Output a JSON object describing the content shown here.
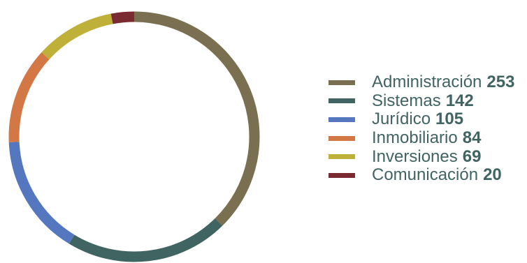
{
  "chart_data": {
    "type": "pie",
    "variant": "donut",
    "title": "",
    "legend_position": "right",
    "categories": [
      "Administración",
      "Sistemas",
      "Jurídico",
      "Inmobiliario",
      "Inversiones",
      "Comunicación"
    ],
    "values": [
      253,
      142,
      105,
      84,
      69,
      20
    ],
    "colors": [
      "#7a6f50",
      "#3f6462",
      "#5477c0",
      "#d37745",
      "#bfb03a",
      "#7b2a31"
    ],
    "legend": [
      {
        "label": "Administración",
        "value": "253",
        "color": "#7a6f50"
      },
      {
        "label": "Sistemas",
        "value": "142",
        "color": "#3f6462"
      },
      {
        "label": "Jurídico",
        "value": "105",
        "color": "#5477c0"
      },
      {
        "label": "Inmobiliario",
        "value": "84",
        "color": "#d37745"
      },
      {
        "label": "Inversiones",
        "value": "69",
        "color": "#bfb03a"
      },
      {
        "label": "Comunicación",
        "value": "20",
        "color": "#7b2a31"
      }
    ]
  }
}
